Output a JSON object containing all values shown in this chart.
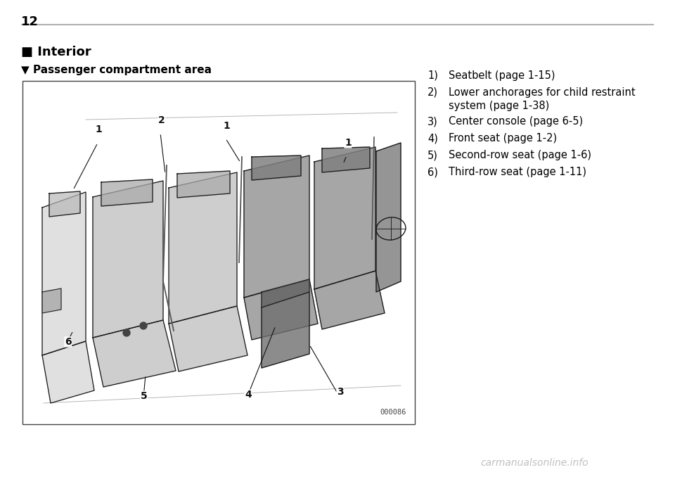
{
  "page_number": "12",
  "section_title": "Interior",
  "subsection_title": "Passenger compartment area",
  "list_items": [
    {
      "num": "1)",
      "text": "Seatbelt (page 1-15)"
    },
    {
      "num": "2)",
      "text": "Lower anchorages for child restraint\nsystem (page 1-38)"
    },
    {
      "num": "3)",
      "text": "Center console (page 6-5)"
    },
    {
      "num": "4)",
      "text": "Front seat (page 1-2)"
    },
    {
      "num": "5)",
      "text": "Second-row seat (page 1-6)"
    },
    {
      "num": "6)",
      "text": "Third-row seat (page 1-11)"
    }
  ],
  "image_code": "000086",
  "bg_color": "#ffffff",
  "text_color": "#000000",
  "line_color": "#b0b0b0",
  "box_color": "#000000",
  "watermark_text": "carmanualsonline.info",
  "watermark_color": "#c0c0c0",
  "fig_width": 9.6,
  "fig_height": 6.78,
  "dpi": 100
}
